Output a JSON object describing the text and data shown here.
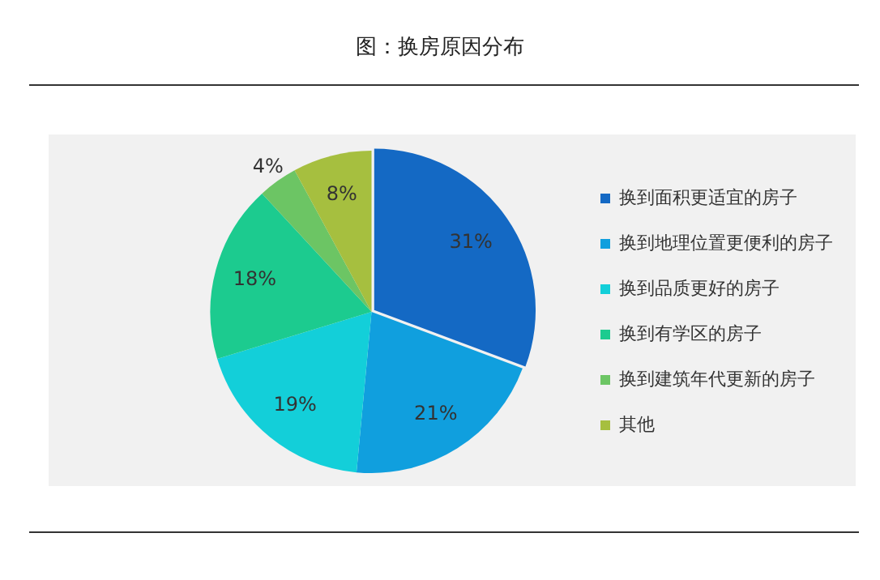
{
  "chart_data": {
    "type": "pie",
    "title": "图：换房原因分布",
    "categories": [
      "换到面积更适宜的房子",
      "换到地理位置更便利的房子",
      "换到品质更好的房子",
      "换到有学区的房子",
      "换到建筑年代更新的房子",
      "其他"
    ],
    "values": [
      31,
      21,
      19,
      18,
      4,
      8
    ],
    "value_labels": [
      "31%",
      "21%",
      "19%",
      "18%",
      "4%",
      "8%"
    ],
    "colors": [
      "#1469c4",
      "#109fde",
      "#13cfd9",
      "#1ccb8f",
      "#6cc564",
      "#a6bf3f"
    ],
    "legend": "right"
  }
}
